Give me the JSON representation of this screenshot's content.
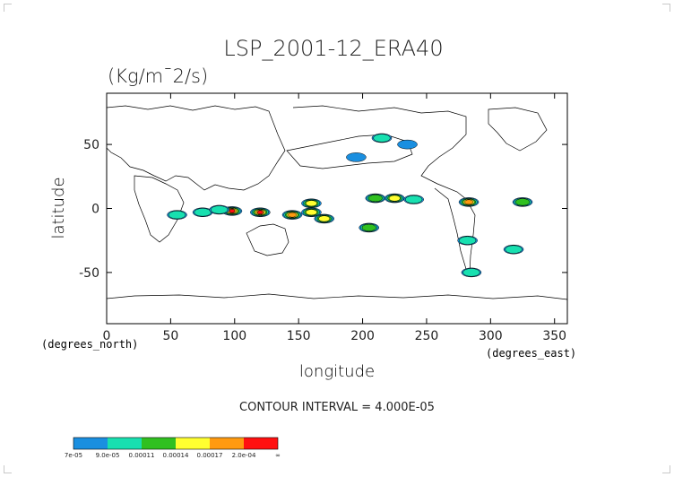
{
  "chart_data": {
    "type": "heatmap",
    "title": "LSP_2001-12_ERA40",
    "units": "(Kg/m¯2/s)",
    "xlabel": "longitude",
    "ylabel": "latitude",
    "x_axis_note": "(degrees_east)",
    "y_axis_note": "(degrees_north)",
    "xlim": [
      0,
      360
    ],
    "ylim": [
      -90,
      90
    ],
    "x_ticks": [
      0,
      50,
      100,
      150,
      200,
      250,
      300,
      350
    ],
    "y_ticks": [
      -50,
      0,
      50
    ],
    "contour_interval_text": "CONTOUR INTERVAL = 4.000E-05",
    "colorbar": {
      "labels": [
        "7e-05",
        "9.0e-05",
        "0.00011",
        "0.00014",
        "0.00017",
        "2.0e-04",
        "∞"
      ],
      "colors": [
        "#1a8fe0",
        "#18e0b0",
        "#30c020",
        "#ffff30",
        "#ff9a10",
        "#ff1010"
      ]
    },
    "features": [
      {
        "lon": 98,
        "lat": -2,
        "level": 5
      },
      {
        "lon": 120,
        "lat": -3,
        "level": 5
      },
      {
        "lon": 145,
        "lat": -5,
        "level": 4
      },
      {
        "lon": 160,
        "lat": -3,
        "level": 3
      },
      {
        "lon": 170,
        "lat": -8,
        "level": 3
      },
      {
        "lon": 160,
        "lat": 4,
        "level": 3
      },
      {
        "lon": 210,
        "lat": 8,
        "level": 2
      },
      {
        "lon": 225,
        "lat": 8,
        "level": 3
      },
      {
        "lon": 240,
        "lat": 7,
        "level": 1
      },
      {
        "lon": 205,
        "lat": -15,
        "level": 2
      },
      {
        "lon": 283,
        "lat": 5,
        "level": 4
      },
      {
        "lon": 325,
        "lat": 5,
        "level": 2
      },
      {
        "lon": 318,
        "lat": -32,
        "level": 1
      },
      {
        "lon": 285,
        "lat": -50,
        "level": 1
      },
      {
        "lon": 282,
        "lat": -25,
        "level": 1
      },
      {
        "lon": 215,
        "lat": 55,
        "level": 1
      },
      {
        "lon": 195,
        "lat": 40,
        "level": 0
      },
      {
        "lon": 235,
        "lat": 50,
        "level": 0
      },
      {
        "lon": 55,
        "lat": -5,
        "level": 1
      },
      {
        "lon": 75,
        "lat": -3,
        "level": 1
      },
      {
        "lon": 88,
        "lat": -1,
        "level": 1
      }
    ]
  }
}
